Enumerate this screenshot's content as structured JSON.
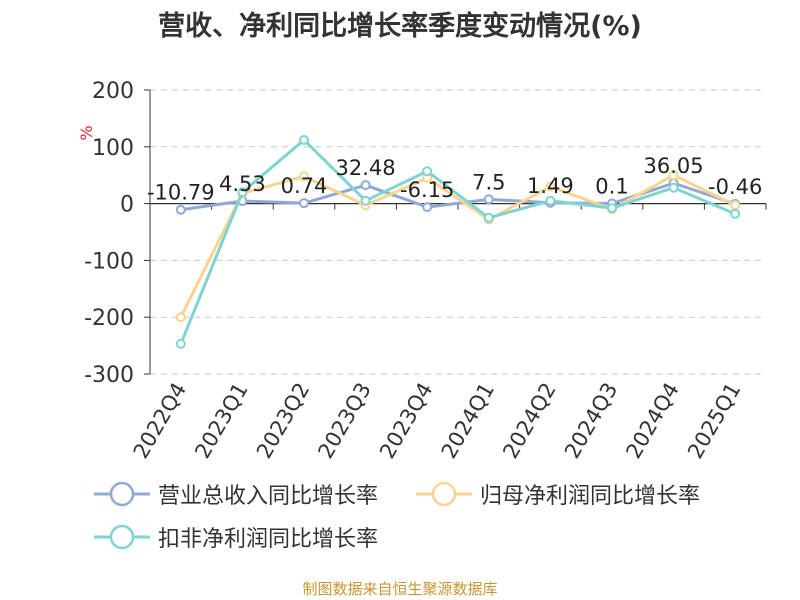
{
  "chart_data": {
    "type": "line",
    "title": "营收、净利同比增长率季度变动情况(%)",
    "ylabel": "%",
    "ylim": [
      -300,
      200
    ],
    "yticks": [
      200,
      100,
      0,
      -100,
      -200,
      -300
    ],
    "grid": true,
    "legend_position": "bottom",
    "categories": [
      "2022Q4",
      "2023Q1",
      "2023Q2",
      "2023Q3",
      "2023Q4",
      "2024Q1",
      "2024Q2",
      "2024Q3",
      "2024Q4",
      "2025Q1"
    ],
    "series": [
      {
        "name": "营业总收入同比增长率",
        "color": "#8fa9d6",
        "values": [
          -10.79,
          4.53,
          0.74,
          32.48,
          -6.15,
          7.5,
          1.49,
          0.1,
          36.05,
          -0.46
        ],
        "labels": [
          "-10.79",
          "4.53",
          "0.74",
          "32.48",
          "-6.15",
          "7.5",
          "1.49",
          "0.1",
          "36.05",
          "-0.46"
        ]
      },
      {
        "name": "归母净利润同比增长率",
        "color": "#f9d48e",
        "values": [
          -200,
          18,
          48,
          -3,
          45,
          -28,
          30,
          -10,
          50,
          -3
        ]
      },
      {
        "name": "扣非净利润同比增长率",
        "color": "#7fd3d3",
        "values": [
          -247,
          20,
          112,
          5,
          57,
          -25,
          5,
          -8,
          28,
          -18
        ]
      }
    ]
  },
  "source": {
    "text": "制图数据来自恒生聚源数据库",
    "color": "#c8962e"
  }
}
